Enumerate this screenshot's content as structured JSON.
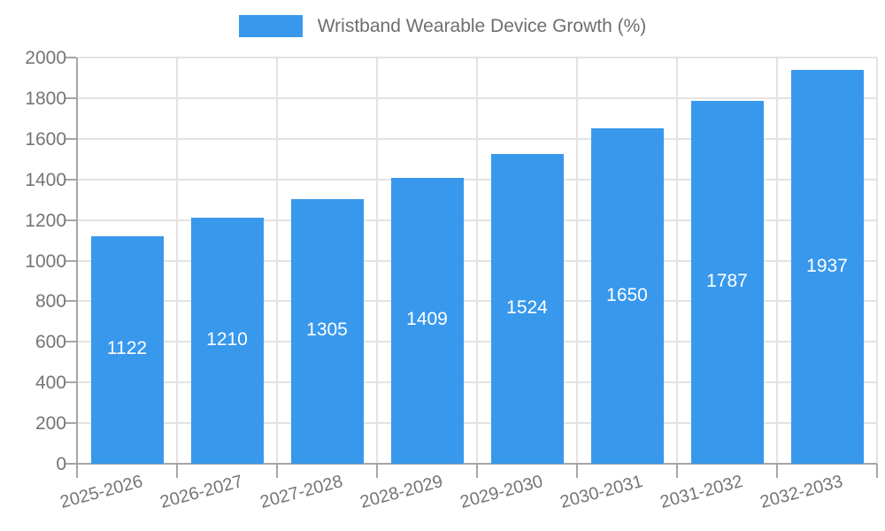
{
  "legend": {
    "label": "Wristband Wearable Device Growth (%)"
  },
  "chart_data": {
    "type": "bar",
    "title": "Wristband Wearable Device Growth (%)",
    "categories": [
      "2025-2026",
      "2026-2027",
      "2027-2028",
      "2028-2029",
      "2029-2030",
      "2030-2031",
      "2031-2032",
      "2032-2033"
    ],
    "values": [
      1122,
      1210,
      1305,
      1409,
      1524,
      1650,
      1787,
      1937
    ],
    "xlabel": "",
    "ylabel": "",
    "ylim": [
      0,
      2000
    ],
    "ytick_step": 200,
    "ytick_labels": [
      "0",
      "200",
      "400",
      "600",
      "800",
      "1000",
      "1200",
      "1400",
      "1600",
      "1800",
      "2000"
    ],
    "grid": true,
    "legend_position": "top",
    "x_label_rotation_deg": -15,
    "bar_color": "#3898EC",
    "value_label_color": "#FFFFFF",
    "axis_text_color": "#757575",
    "grid_color": "#E3E3E3",
    "axis_line_color": "#A6A6A6"
  }
}
